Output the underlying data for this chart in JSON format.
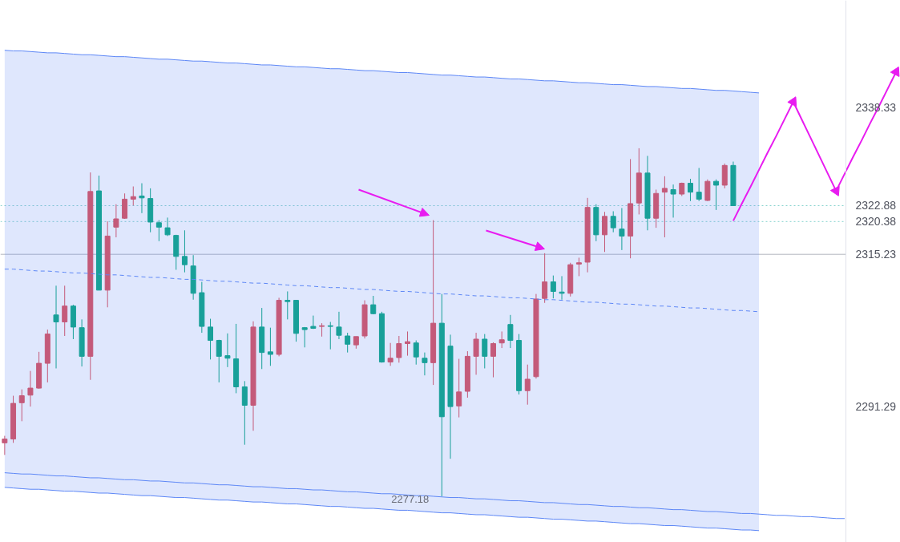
{
  "chart_data": {
    "type": "candlestick",
    "categories": [
      null,
      null,
      null,
      null,
      null,
      null,
      null,
      null,
      null,
      null,
      null,
      null,
      null,
      null,
      null,
      null,
      null,
      null,
      null,
      null,
      null,
      null,
      null,
      null,
      null,
      null,
      null,
      null,
      null,
      null,
      null,
      null,
      null,
      null,
      null,
      null,
      null,
      null,
      null,
      null,
      null,
      null,
      null,
      null,
      null,
      null,
      null,
      null,
      null,
      null,
      null,
      null,
      null,
      null,
      null,
      null,
      null,
      null,
      null,
      null,
      null,
      null,
      null,
      null,
      null,
      null,
      null,
      null,
      null,
      null,
      null,
      null,
      null,
      null,
      null,
      null,
      null,
      null,
      null,
      null,
      null,
      null,
      null,
      null,
      null,
      null,
      null,
      null,
      null,
      null,
      null,
      null,
      null,
      null,
      null,
      null,
      null,
      null,
      null,
      null,
      null,
      null,
      null,
      null,
      null
    ],
    "ohlc": [
      [
        2285.6,
        2286.7,
        2283.7,
        2286.2
      ],
      [
        2286.2,
        2293.0,
        2285.6,
        2291.8
      ],
      [
        2291.9,
        2294.0,
        2289.0,
        2293.0
      ],
      [
        2293.1,
        2296.9,
        2291.3,
        2294.2
      ],
      [
        2294.2,
        2299.9,
        2294.1,
        2298.1
      ],
      [
        2298.1,
        2303.4,
        2295.1,
        2302.7
      ],
      [
        2305.7,
        2310.3,
        2297.3,
        2304.6
      ],
      [
        2304.6,
        2310.3,
        2302.4,
        2307.1
      ],
      [
        2307.1,
        2307.3,
        2301.9,
        2303.8
      ],
      [
        2303.7,
        2305.0,
        2297.6,
        2299.2
      ],
      [
        2299.2,
        2328.1,
        2295.5,
        2325.1
      ],
      [
        2325.2,
        2327.6,
        2309.6,
        2309.6
      ],
      [
        2309.6,
        2320.4,
        2306.9,
        2318.1
      ],
      [
        2319.5,
        2323.1,
        2317.9,
        2320.8
      ],
      [
        2320.9,
        2324.8,
        2320.8,
        2323.9
      ],
      [
        2323.9,
        2325.9,
        2322.9,
        2324.3
      ],
      [
        2324.4,
        2326.4,
        2321.7,
        2324.1
      ],
      [
        2324.0,
        2325.6,
        2318.7,
        2320.3
      ],
      [
        2320.2,
        2320.6,
        2317.3,
        2319.5
      ],
      [
        2319.4,
        2321.0,
        2318.1,
        2318.3
      ],
      [
        2318.2,
        2318.3,
        2312.8,
        2314.9
      ],
      [
        2314.9,
        2319.0,
        2312.4,
        2313.6
      ],
      [
        2313.4,
        2315.1,
        2308.1,
        2309.1
      ],
      [
        2309.2,
        2310.9,
        2302.9,
        2303.9
      ],
      [
        2303.8,
        2305.1,
        2298.7,
        2301.7
      ],
      [
        2301.7,
        2301.8,
        2295.1,
        2299.2
      ],
      [
        2299.3,
        2302.8,
        2297.5,
        2298.9
      ],
      [
        2298.8,
        2304.3,
        2293.4,
        2294.4
      ],
      [
        2294.4,
        2295.3,
        2285.3,
        2291.5
      ],
      [
        2291.5,
        2304.7,
        2287.5,
        2303.8
      ],
      [
        2303.8,
        2306.8,
        2297.2,
        2299.8
      ],
      [
        2299.9,
        2303.7,
        2297.7,
        2299.5
      ],
      [
        2299.5,
        2308.4,
        2299.2,
        2308.0
      ],
      [
        2308.0,
        2309.4,
        2305.0,
        2307.8
      ],
      [
        2308.0,
        2308.0,
        2301.5,
        2302.8
      ],
      [
        2303.7,
        2303.8,
        2300.6,
        2303.4
      ],
      [
        2303.9,
        2305.6,
        2303.5,
        2303.6
      ],
      [
        2303.9,
        2304.4,
        2302.3,
        2304.0
      ],
      [
        2304.0,
        2304.6,
        2300.3,
        2303.9
      ],
      [
        2303.8,
        2306.2,
        2301.9,
        2302.5
      ],
      [
        2302.4,
        2302.9,
        2299.8,
        2301.1
      ],
      [
        2301.0,
        2302.3,
        2300.4,
        2302.3
      ],
      [
        2302.4,
        2308.0,
        2302.0,
        2307.3
      ],
      [
        2307.3,
        2308.7,
        2305.8,
        2305.9
      ],
      [
        2305.9,
        2306.2,
        2298.2,
        2298.3
      ],
      [
        2298.3,
        2301.3,
        2297.7,
        2298.9
      ],
      [
        2299.0,
        2302.4,
        2298.2,
        2301.2
      ],
      [
        2301.2,
        2303.1,
        2299.3,
        2301.5
      ],
      [
        2301.3,
        2301.7,
        2297.9,
        2299.1
      ],
      [
        2298.9,
        2299.8,
        2296.2,
        2298.2
      ],
      [
        2298.2,
        2320.6,
        2294.7,
        2304.4
      ],
      [
        2304.4,
        2309.0,
        2277.18,
        2289.7
      ],
      [
        2300.8,
        2302.6,
        2283.1,
        2291.3
      ],
      [
        2291.4,
        2298.8,
        2289.6,
        2293.6
      ],
      [
        2293.7,
        2300.0,
        2292.7,
        2299.2
      ],
      [
        2299.2,
        2302.9,
        2296.3,
        2301.9
      ],
      [
        2301.9,
        2302.7,
        2297.3,
        2299.2
      ],
      [
        2299.2,
        2301.4,
        2295.9,
        2301.2
      ],
      [
        2301.3,
        2303.1,
        2300.5,
        2301.8
      ],
      [
        2304.2,
        2305.7,
        2300.5,
        2301.7
      ],
      [
        2301.7,
        2302.7,
        2293.2,
        2293.8
      ],
      [
        2293.8,
        2297.9,
        2291.6,
        2295.6
      ],
      [
        2296.0,
        2309.0,
        2295.7,
        2308.2
      ],
      [
        2308.3,
        2315.4,
        2307.6,
        2310.9
      ],
      [
        2310.9,
        2311.9,
        2308.3,
        2309.4
      ],
      [
        2309.3,
        2311.8,
        2308.1,
        2309.1
      ],
      [
        2309.1,
        2313.9,
        2308.6,
        2313.6
      ],
      [
        2313.7,
        2314.7,
        2311.8,
        2313.9
      ],
      [
        2314.0,
        2324.1,
        2312.4,
        2322.6
      ],
      [
        2322.6,
        2323.1,
        2317.3,
        2318.3
      ],
      [
        2318.3,
        2321.9,
        2315.6,
        2321.2
      ],
      [
        2321.2,
        2322.0,
        2318.7,
        2319.4
      ],
      [
        2319.2,
        2322.5,
        2315.9,
        2318.1
      ],
      [
        2318.1,
        2330.2,
        2314.6,
        2323.2
      ],
      [
        2323.3,
        2331.9,
        2321.5,
        2328.0
      ],
      [
        2328.0,
        2330.7,
        2319.0,
        2320.9
      ],
      [
        2320.9,
        2325.4,
        2319.4,
        2324.8
      ],
      [
        2325.0,
        2327.5,
        2317.9,
        2325.6
      ],
      [
        2325.4,
        2326.2,
        2321.0,
        2324.7
      ],
      [
        2324.7,
        2326.5,
        2324.4,
        2326.4
      ],
      [
        2326.4,
        2327.1,
        2323.6,
        2325.0
      ],
      [
        2325.0,
        2328.8,
        2323.6,
        2323.9
      ],
      [
        2323.7,
        2327.0,
        2323.6,
        2326.7
      ],
      [
        2326.7,
        2327.0,
        2322.2,
        2326.1
      ],
      [
        2326.1,
        2329.5,
        2325.6,
        2329.2
      ],
      [
        2329.2,
        2329.8,
        2322.88,
        2322.88
      ],
      null,
      null,
      null,
      null,
      null,
      null,
      null,
      null,
      null,
      null,
      null,
      null,
      null,
      null,
      null,
      null,
      null,
      null,
      null
    ],
    "colors": [
      "#c45a7a",
      "#c45a7a",
      "#c45a7a",
      "#c45a7a",
      "#c45a7a",
      "#c45a7a",
      "#18a099",
      "#c45a7a",
      "#18a099",
      "#18a099",
      "#c45a7a",
      "#18a099",
      "#c45a7a",
      "#c45a7a",
      "#c45a7a",
      "#c45a7a",
      "#18a099",
      "#18a099",
      "#18a099",
      "#18a099",
      "#18a099",
      "#18a099",
      "#18a099",
      "#18a099",
      "#18a099",
      "#18a099",
      "#18a099",
      "#18a099",
      "#18a099",
      "#c45a7a",
      "#18a099",
      "#18a099",
      "#c45a7a",
      "#18a099",
      "#18a099",
      "#18a099",
      "#18a099",
      "#c45a7a",
      "#18a099",
      "#18a099",
      "#18a099",
      "#c45a7a",
      "#c45a7a",
      "#18a099",
      "#18a099",
      "#c45a7a",
      "#c45a7a",
      "#c45a7a",
      "#18a099",
      "#18a099",
      "#c45a7a",
      "#18a099",
      "#18a099",
      "#c45a7a",
      "#c45a7a",
      "#c45a7a",
      "#18a099",
      "#c45a7a",
      "#c45a7a",
      "#18a099",
      "#18a099",
      "#c45a7a",
      "#c45a7a",
      "#c45a7a",
      "#18a099",
      "#18a099",
      "#c45a7a",
      "#c45a7a",
      "#c45a7a",
      "#18a099",
      "#c45a7a",
      "#18a099",
      "#18a099",
      "#c45a7a",
      "#c45a7a",
      "#18a099",
      "#c45a7a",
      "#c45a7a",
      "#18a099",
      "#c45a7a",
      "#18a099",
      "#18a099",
      "#c45a7a",
      "#18a099",
      "#c45a7a",
      "#18a099",
      null,
      null,
      null,
      null,
      null,
      null,
      null,
      null,
      null,
      null,
      null,
      null,
      null,
      null,
      null,
      null,
      null,
      null,
      null
    ],
    "series": [
      {
        "type": "line",
        "color": "#5d87f6",
        "line_style": "dashed",
        "values": [
          2312.9,
          2312.9,
          2312.8,
          2312.7,
          2312.6,
          2312.6,
          2312.5,
          2312.4,
          2312.3,
          2312.3,
          2312.2,
          2312.1,
          2312.0,
          2312.0,
          2311.9,
          2311.8,
          2311.7,
          2311.6,
          2311.6,
          2311.5,
          2311.4,
          2311.3,
          2311.3,
          2311.2,
          2311.1,
          2311.0,
          2311.0,
          2310.9,
          2310.8,
          2310.7,
          2310.7,
          2310.6,
          2310.5,
          2310.4,
          2310.3,
          2310.3,
          2310.2,
          2310.1,
          2310.0,
          2310.0,
          2309.9,
          2309.8,
          2309.7,
          2309.7,
          2309.6,
          2309.5,
          2309.4,
          2309.4,
          2309.3,
          2309.2,
          2309.1,
          2309.0,
          2309.0,
          2308.9,
          2308.8,
          2308.7,
          2308.7,
          2308.6,
          2308.5,
          2308.4,
          2308.4,
          2308.3,
          2308.2,
          2308.1,
          2308.1,
          2308.0,
          2307.9,
          2307.8,
          2307.7,
          2307.7,
          2307.6,
          2307.5,
          2307.4,
          2307.4,
          2307.3,
          2307.2,
          2307.1,
          2307.1,
          2307.0,
          2306.9,
          2306.8,
          2306.8,
          2306.7,
          2306.6,
          2306.5,
          2306.4,
          2306.4,
          2306.3,
          2306.2,
          null,
          null,
          null,
          null,
          null,
          null,
          null,
          null,
          null,
          null,
          null,
          null,
          null,
          null,
          null,
          null
        ],
        "lower": [
          2278.6,
          2278.5,
          2278.4,
          2278.3,
          2278.3,
          2278.2,
          2278.1,
          2278.0,
          2278.0,
          2277.9,
          2277.8,
          2277.7,
          2277.7,
          2277.6,
          2277.5,
          2277.4,
          2277.3,
          2277.3,
          2277.2,
          2277.1,
          2277.0,
          2277.0,
          2276.9,
          2276.8,
          2276.7,
          2276.6,
          2276.6,
          2276.5,
          2276.4,
          2276.3,
          2276.3,
          2276.2,
          2276.1,
          2276.0,
          2276.0,
          2275.9,
          2275.8,
          2275.7,
          2275.6,
          2275.6,
          2275.5,
          2275.4,
          2275.3,
          2275.3,
          2275.2,
          2275.1,
          2275.0,
          2275.0,
          2274.9,
          2274.8,
          2274.7,
          2274.6,
          2274.6,
          2274.5,
          2274.4,
          2274.3,
          2274.3,
          2274.2,
          2274.1,
          2274.0,
          2273.9,
          2273.9,
          2273.8,
          2273.7,
          2273.6,
          2273.6,
          2273.5,
          2273.4,
          2273.3,
          2273.3,
          2273.2,
          2273.1,
          2273.0,
          2272.9,
          2272.9,
          2272.8,
          2272.7,
          2272.6,
          2272.6,
          2272.5,
          2272.4,
          2272.3,
          2272.2,
          2272.2,
          2272.1,
          2272.0,
          2271.9,
          2271.9,
          2271.8,
          null,
          null,
          null,
          null,
          null,
          null,
          null,
          null,
          null,
          null,
          null,
          null,
          null,
          null,
          null,
          null
        ],
        "upper": [
          2347.3,
          2347.2,
          2347.2,
          2347.1,
          2347.0,
          2346.9,
          2346.9,
          2346.8,
          2346.7,
          2346.6,
          2346.6,
          2346.5,
          2346.4,
          2346.3,
          2346.3,
          2346.2,
          2346.1,
          2346.0,
          2345.9,
          2345.9,
          2345.8,
          2345.7,
          2345.6,
          2345.6,
          2345.5,
          2345.4,
          2345.3,
          2345.3,
          2345.2,
          2345.1,
          2345.0,
          2345.0,
          2344.9,
          2344.8,
          2344.7,
          2344.7,
          2344.6,
          2344.5,
          2344.4,
          2344.4,
          2344.3,
          2344.2,
          2344.1,
          2344.1,
          2344.0,
          2343.9,
          2343.8,
          2343.8,
          2343.7,
          2343.6,
          2343.5,
          2343.4,
          2343.4,
          2343.3,
          2343.2,
          2343.1,
          2343.1,
          2343.0,
          2342.9,
          2342.8,
          2342.8,
          2342.7,
          2342.6,
          2342.5,
          2342.5,
          2342.4,
          2342.3,
          2342.2,
          2342.2,
          2342.1,
          2342.0,
          2341.9,
          2341.9,
          2341.8,
          2341.7,
          2341.6,
          2341.6,
          2341.5,
          2341.4,
          2341.3,
          2341.3,
          2341.2,
          2341.1,
          2341.0,
          2341.0,
          2340.9,
          2340.8,
          2340.7,
          2340.6,
          null,
          null,
          null,
          null,
          null,
          null,
          null,
          null,
          null,
          null,
          null,
          null,
          null,
          null,
          null,
          null
        ]
      },
      {
        "type": "line",
        "color": "#5d87f6",
        "values": [
          2347.3,
          2347.2,
          2347.2,
          2347.1,
          2347.0,
          2346.9,
          2346.9,
          2346.8,
          2346.7,
          2346.6,
          2346.6,
          2346.5,
          2346.4,
          2346.3,
          2346.3,
          2346.2,
          2346.1,
          2346.0,
          2345.9,
          2345.9,
          2345.8,
          2345.7,
          2345.6,
          2345.6,
          2345.5,
          2345.4,
          2345.3,
          2345.3,
          2345.2,
          2345.1,
          2345.0,
          2345.0,
          2344.9,
          2344.8,
          2344.7,
          2344.7,
          2344.6,
          2344.5,
          2344.4,
          2344.4,
          2344.3,
          2344.2,
          2344.1,
          2344.1,
          2344.0,
          2343.9,
          2343.8,
          2343.8,
          2343.7,
          2343.6,
          2343.5,
          2343.4,
          2343.4,
          2343.3,
          2343.2,
          2343.1,
          2343.1,
          2343.0,
          2342.9,
          2342.8,
          2342.8,
          2342.7,
          2342.6,
          2342.5,
          2342.5,
          2342.4,
          2342.3,
          2342.2,
          2342.2,
          2342.1,
          2342.0,
          2341.9,
          2341.9,
          2341.8,
          2341.7,
          2341.6,
          2341.6,
          2341.5,
          2341.4,
          2341.3,
          2341.3,
          2341.2,
          2341.1,
          2341.0,
          2341.0,
          2340.9,
          2340.8,
          2340.7,
          2340.6,
          null,
          null,
          null,
          null,
          null,
          null,
          null,
          null,
          null,
          null,
          null,
          null,
          null,
          null,
          null,
          null
        ]
      },
      {
        "type": "line",
        "color": "#5d87f6",
        "values": [
          2278.6,
          2278.5,
          2278.4,
          2278.3,
          2278.3,
          2278.2,
          2278.1,
          2278.0,
          2278.0,
          2277.9,
          2277.8,
          2277.7,
          2277.7,
          2277.6,
          2277.5,
          2277.4,
          2277.3,
          2277.3,
          2277.2,
          2277.1,
          2277.0,
          2277.0,
          2276.9,
          2276.8,
          2276.7,
          2276.6,
          2276.6,
          2276.5,
          2276.4,
          2276.3,
          2276.3,
          2276.2,
          2276.1,
          2276.0,
          2276.0,
          2275.9,
          2275.8,
          2275.7,
          2275.6,
          2275.6,
          2275.5,
          2275.4,
          2275.3,
          2275.3,
          2275.2,
          2275.1,
          2275.0,
          2275.0,
          2274.9,
          2274.8,
          2274.7,
          2274.6,
          2274.6,
          2274.5,
          2274.4,
          2274.3,
          2274.3,
          2274.2,
          2274.1,
          2274.0,
          2273.9,
          2273.9,
          2273.8,
          2273.7,
          2273.6,
          2273.6,
          2273.5,
          2273.4,
          2273.3,
          2273.3,
          2273.2,
          2273.1,
          2273.0,
          2272.9,
          2272.9,
          2272.8,
          2272.7,
          2272.6,
          2272.6,
          2272.5,
          2272.4,
          2272.3,
          2272.2,
          2272.2,
          2272.1,
          2272.0,
          2271.9,
          2271.9,
          2271.8,
          null,
          null,
          null,
          null,
          null,
          null,
          null,
          null,
          null,
          null,
          null,
          null,
          null,
          null,
          null,
          null
        ]
      },
      {
        "type": "line",
        "color": "#5d87f6",
        "values": [
          2280.9,
          2280.8,
          2280.7,
          2280.7,
          2280.6,
          2280.5,
          2280.4,
          2280.4,
          2280.3,
          2280.2,
          2280.1,
          2280.1,
          2280.0,
          2279.9,
          2279.8,
          2279.8,
          2279.7,
          2279.6,
          2279.6,
          2279.5,
          2279.4,
          2279.3,
          2279.3,
          2279.2,
          2279.1,
          2279.0,
          2279.0,
          2278.9,
          2278.8,
          2278.7,
          2278.7,
          2278.6,
          2278.5,
          2278.4,
          2278.4,
          2278.3,
          2278.2,
          2278.2,
          2278.1,
          2278.0,
          2277.9,
          2277.9,
          2277.8,
          2277.7,
          2277.6,
          2277.6,
          2277.5,
          2277.4,
          2277.3,
          2277.3,
          2277.2,
          2277.1,
          2277.0,
          2277.0,
          2276.9,
          2276.8,
          2276.8,
          2276.7,
          2276.6,
          2276.5,
          2276.5,
          2276.4,
          2276.3,
          2276.2,
          2276.2,
          2276.1,
          2276.0,
          2275.9,
          2275.9,
          2275.8,
          2275.7,
          2275.6,
          2275.6,
          2275.5,
          2275.4,
          2275.4,
          2275.3,
          2275.2,
          2275.1,
          2275.1,
          2275.0,
          2274.9,
          2274.8,
          2274.8,
          2274.7,
          2274.6,
          2274.5,
          2274.5,
          2274.4,
          2274.3,
          2274.2,
          2274.2,
          2274.1,
          2274.0,
          2274.0,
          2273.9,
          2273.8,
          2273.7,
          2273.7,
          null,
          null,
          null,
          null,
          null,
          null
        ]
      },
      {
        "type": "line",
        "color": "#e81cf0",
        "values": [
          null,
          null,
          null,
          null,
          null,
          null,
          null,
          null,
          null,
          null,
          null,
          null,
          null,
          null,
          null,
          null,
          null,
          null,
          null,
          null,
          null,
          null,
          null,
          null,
          null,
          null,
          null,
          null,
          null,
          null,
          null,
          null,
          null,
          null,
          null,
          null,
          null,
          null,
          null,
          null,
          null,
          null,
          null,
          null,
          null,
          null,
          null,
          null,
          null,
          null,
          null,
          null,
          null,
          null,
          null,
          null,
          null,
          null,
          null,
          null,
          null,
          null,
          null,
          null,
          null,
          null,
          null,
          null,
          null,
          null,
          null,
          null,
          null,
          null,
          null,
          null,
          null,
          null,
          null,
          null,
          null,
          null,
          null,
          null,
          null,
          2320.5,
          2323.2,
          2325.8,
          2328.5,
          2331.2,
          2333.8,
          2336.5,
          2339.2,
          2336.4,
          2333.6,
          2330.8,
          2328.0,
          2325.2,
          2327.9,
          2330.6,
          2333.2,
          2335.9,
          2338.5,
          2341.2,
          2343.9
        ]
      },
      {
        "type": "scatter",
        "color": "#e81cf0",
        "marker": "triangle",
        "values": [
          null,
          null,
          null,
          null,
          null,
          null,
          null,
          null,
          null,
          null,
          null,
          null,
          null,
          null,
          null,
          null,
          null,
          null,
          null,
          null,
          null,
          null,
          null,
          null,
          null,
          null,
          null,
          null,
          null,
          null,
          null,
          null,
          null,
          null,
          null,
          null,
          null,
          null,
          null,
          null,
          null,
          null,
          null,
          null,
          null,
          null,
          null,
          null,
          null,
          null,
          null,
          null,
          null,
          null,
          null,
          null,
          null,
          null,
          null,
          null,
          null,
          null,
          null,
          null,
          null,
          null,
          null,
          null,
          null,
          null,
          null,
          null,
          null,
          null,
          null,
          null,
          null,
          null,
          null,
          null,
          null,
          null,
          null,
          null,
          null,
          null,
          null,
          null,
          null,
          null,
          null,
          null,
          2339.2,
          null,
          null,
          null,
          null,
          2325.2,
          null,
          null,
          null,
          null,
          null,
          null,
          2343.9
        ]
      }
    ],
    "ref_lines": [
      {
        "axis": "y",
        "value": 2322.88,
        "color": "#86d3ce",
        "line_style": "dotted"
      },
      {
        "axis": "y",
        "value": 2320.38,
        "color": "#86d3ce",
        "line_style": "dotted"
      },
      {
        "axis": "y",
        "value": 2315.23,
        "color": "#b2b5be",
        "line_style": "solid"
      }
    ],
    "annotations": [
      {
        "text": "2277.18",
        "y": 2277.18
      }
    ],
    "ylim": [
      2269.95,
      2355.14
    ],
    "yticks": [
      2338.33,
      2322.88,
      2320.38,
      2315.23,
      2291.29
    ],
    "tick_labels": "y"
  }
}
